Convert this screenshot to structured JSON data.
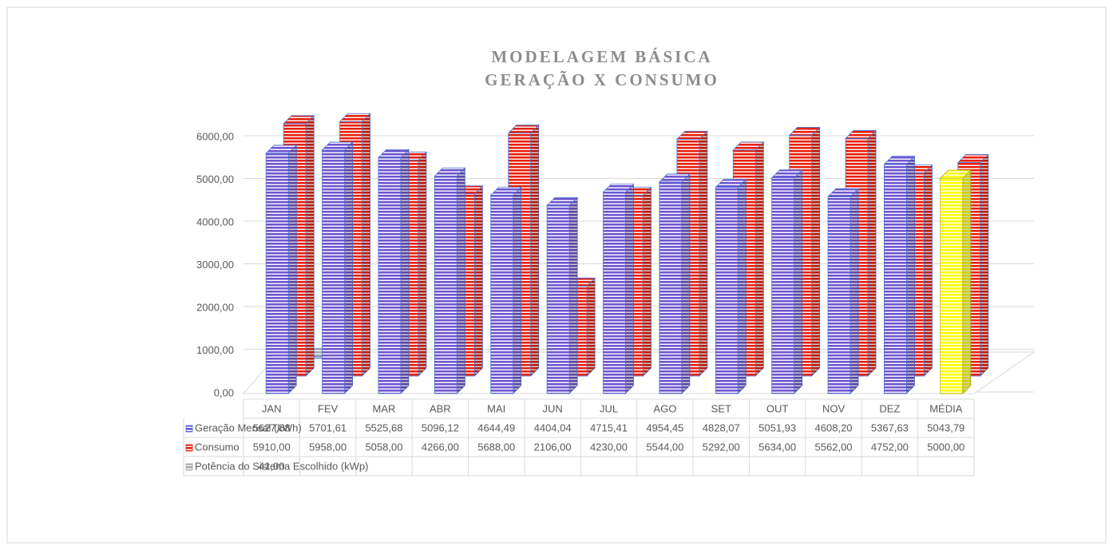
{
  "chart_data": {
    "type": "bar3d",
    "title": [
      "MODELAGEM BÁSICA",
      "GERAÇÃO X CONSUMO"
    ],
    "categories": [
      "JAN",
      "FEV",
      "MAR",
      "ABR",
      "MAI",
      "JUN",
      "JUL",
      "AGO",
      "SET",
      "OUT",
      "NOV",
      "DEZ",
      "MÉDIA"
    ],
    "series": [
      {
        "name": "Geração Mensal (kWh)",
        "color": "#6f55d0",
        "colors": [
          "#6f55d0",
          "#6f55d0",
          "#6f55d0",
          "#6f55d0",
          "#6f55d0",
          "#6f55d0",
          "#6f55d0",
          "#6f55d0",
          "#6f55d0",
          "#6f55d0",
          "#6f55d0",
          "#6f55d0",
          "#ffff00"
        ],
        "values": [
          5627.88,
          5701.61,
          5525.68,
          5096.12,
          4644.49,
          4404.04,
          4715.41,
          4954.45,
          4828.07,
          5051.93,
          4608.2,
          5367.63,
          5043.79
        ],
        "value_labels": [
          "5627,88",
          "5701,61",
          "5525,68",
          "5096,12",
          "4644,49",
          "4404,04",
          "4715,41",
          "4954,45",
          "4828,07",
          "5051,93",
          "4608,20",
          "5367,63",
          "5043,79"
        ]
      },
      {
        "name": "Consumo",
        "color": "#e8200c",
        "values": [
          5910,
          5958,
          5058,
          4266,
          5688,
          2106,
          4230,
          5544,
          5292,
          5634,
          5562,
          4752,
          5000
        ],
        "value_labels": [
          "5910,00",
          "5958,00",
          "5058,00",
          "4266,00",
          "5688,00",
          "2106,00",
          "4230,00",
          "5544,00",
          "5292,00",
          "5634,00",
          "5562,00",
          "4752,00",
          "5000,00"
        ]
      },
      {
        "name": "Potência do Sistema Escolhido (kWp)",
        "color": "#a6a6a6",
        "values": [
          41,
          null,
          null,
          null,
          null,
          null,
          null,
          null,
          null,
          null,
          null,
          null,
          null
        ],
        "value_labels": [
          "41,00",
          null,
          null,
          null,
          null,
          null,
          null,
          null,
          null,
          null,
          null,
          null,
          null
        ]
      }
    ],
    "ylim": [
      0,
      6000
    ],
    "yticks": [
      {
        "value": 0,
        "label": "0,00"
      },
      {
        "value": 1000,
        "label": "1000,00"
      },
      {
        "value": 2000,
        "label": "2000,00"
      },
      {
        "value": 3000,
        "label": "3000,00"
      },
      {
        "value": 4000,
        "label": "4000,00"
      },
      {
        "value": 5000,
        "label": "5000,00"
      },
      {
        "value": 6000,
        "label": "6000,00"
      }
    ],
    "grid": true
  }
}
